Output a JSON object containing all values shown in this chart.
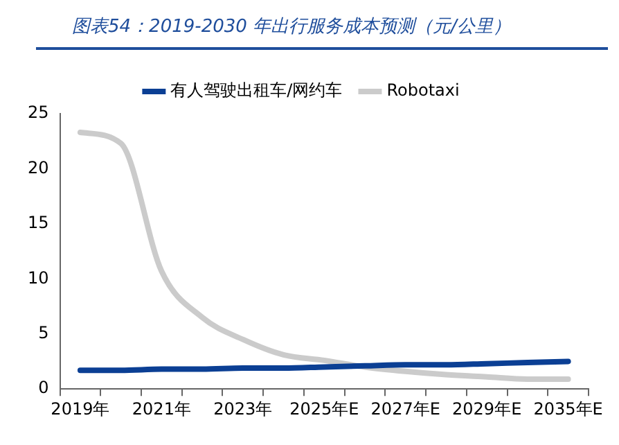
{
  "chart_data": {
    "type": "line",
    "title": "图表54：2019-2030 年出行服务成本预测（元/公里）",
    "categories": [
      "2019年",
      null,
      "2021年",
      null,
      "2023年",
      null,
      "2025年E",
      null,
      "2027年E",
      null,
      "2029年E",
      null,
      "2035年E"
    ],
    "series": [
      {
        "name": "有人驾驶出租车/网约车",
        "color": "#0b3f94",
        "values": [
          1.7,
          1.7,
          1.8,
          1.8,
          1.9,
          1.9,
          2.0,
          2.1,
          2.2,
          2.2,
          2.3,
          2.4,
          2.5
        ]
      },
      {
        "name": "Robotaxi",
        "color": "#cbcbcb",
        "values": [
          23.3,
          22.3,
          10.7,
          6.5,
          4.5,
          3.1,
          2.6,
          2.0,
          1.6,
          1.3,
          1.1,
          0.9,
          0.9
        ]
      }
    ],
    "ylim": [
      0,
      25
    ],
    "yticks": [
      0,
      5,
      10,
      15,
      20,
      25
    ],
    "grid": false,
    "legend": "top",
    "marker": "none",
    "line_style": "solid"
  }
}
